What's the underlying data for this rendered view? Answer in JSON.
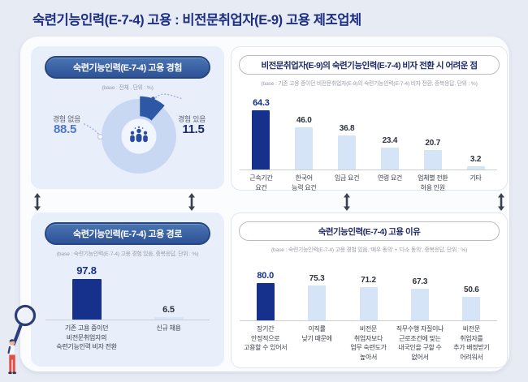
{
  "page": {
    "title": "숙련기능인력(E-7-4) 고용 : 비전문취업자(E-9) 고용 제조업체"
  },
  "colors": {
    "title": "#1c2e85",
    "bar_dark": "#16318c",
    "bar_light": "#d5e4f7",
    "value_emphasis": "#15308a",
    "value_normal": "#2f333c",
    "donut_ring": "#c8d8f2",
    "donut_wedge": "#2f58a4",
    "donut_value_no": "#4d78cc",
    "donut_value_yes": "#1b2b6a"
  },
  "chart_data": [
    {
      "id": "employment-experience",
      "type": "pie",
      "title": "숙련기능인력(E-7-4) 고용 경험",
      "base_note": "(base : 전체 , 단위 : %)",
      "slices": [
        {
          "label": "경험 없음",
          "value": 88.5,
          "value_label": "88.5",
          "emphasis": false
        },
        {
          "label": "경험 있음",
          "value": 11.5,
          "value_label": "11.5",
          "emphasis": true
        }
      ]
    },
    {
      "id": "visa-transition-difficulties",
      "type": "bar",
      "title": "비전문취업자(E-9)의 숙련기능인력(E-7-4) 비자 전환 시 어려운 점",
      "base_note": "(base : 기존 고용 중이던 비전문취업자(E-9)의 숙련기능인력(E-7-4) 비자 전환, 중복응답, 단위 : %)",
      "categories": [
        "근속기간\n요건",
        "한국어\n능력 요건",
        "임금 요건",
        "연령 요건",
        "업체별 전환\n허용 인원",
        "기타"
      ],
      "values": [
        64.3,
        46.0,
        36.8,
        23.4,
        20.7,
        3.2
      ],
      "value_labels": [
        "64.3",
        "46.0",
        "36.8",
        "23.4",
        "20.7",
        "3.2"
      ],
      "emphasis_index": 0,
      "ylim": [
        0,
        70
      ]
    },
    {
      "id": "employment-path",
      "type": "bar",
      "title": "숙련기능인력(E-7-4) 고용 경로",
      "base_note": "(base : 숙련기능인력(E-7-4) 고용 경험 있음, 중복응답, 단위 : %)",
      "categories": [
        "기존 고용 중이던\n비전문취업자의\n숙련기능인력 비자 전환",
        "신규 채용"
      ],
      "values": [
        97.8,
        6.5
      ],
      "value_labels": [
        "97.8",
        "6.5"
      ],
      "emphasis_index": 0,
      "ylim": [
        0,
        100
      ]
    },
    {
      "id": "employment-reasons",
      "type": "bar",
      "title": "숙련기능인력(E-7-4) 고용 이유",
      "base_note": "(base : 숙련기능인력(E-7-4) 고용 경험 있음, '매우 동의' + '다소 동의', 중복응답, 단위 : %)",
      "categories": [
        "장기간\n안정적으로\n고용할 수 있어서",
        "이직률\n낮기 때문에",
        "비전문\n취업자보다\n업무 숙련도가\n높아서",
        "직무수행 자질이나\n근로조건에 맞는\n내국인을 구할 수\n없어서",
        "비전문\n취업자를\n추가 배정받기\n어려워서"
      ],
      "values": [
        80.0,
        75.3,
        71.2,
        67.3,
        50.6
      ],
      "value_labels": [
        "80.0",
        "75.3",
        "71.2",
        "67.3",
        "50.6"
      ],
      "emphasis_index": 0,
      "ylim": [
        0,
        85
      ]
    }
  ]
}
